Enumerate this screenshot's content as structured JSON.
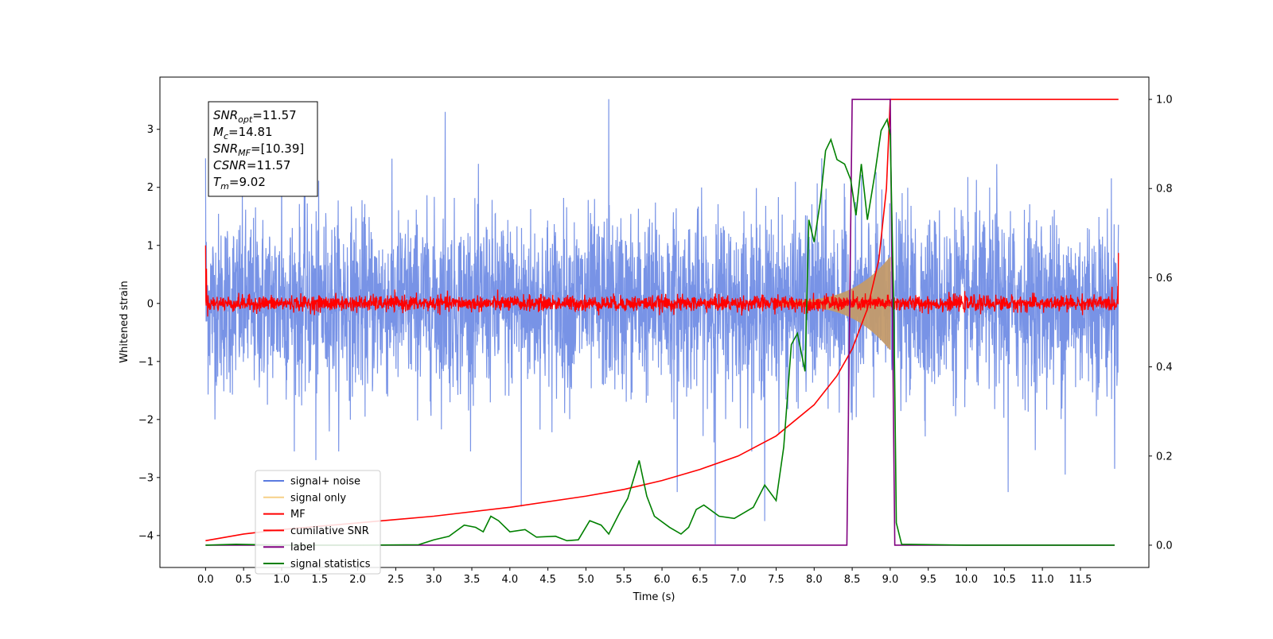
{
  "chart_data": {
    "type": "line",
    "xlabel": "Time (s)",
    "ylabel": "Whitened strain",
    "xlim": [
      -0.6,
      12.4
    ],
    "ylim": [
      -4.55,
      3.9
    ],
    "ylim_right": [
      -0.05,
      1.05
    ],
    "x_ticks": [
      0.0,
      0.5,
      1.0,
      1.5,
      2.0,
      2.5,
      3.0,
      3.5,
      4.0,
      4.5,
      5.0,
      5.5,
      6.0,
      6.5,
      7.0,
      7.5,
      8.0,
      8.5,
      9.0,
      9.5,
      10.0,
      10.5,
      11.0,
      11.5
    ],
    "x_tick_labels": [
      "0.0",
      "0.5",
      "1.0",
      "1.5",
      "2.0",
      "2.5",
      "3.0",
      "3.5",
      "4.0",
      "4.5",
      "5.0",
      "5.5",
      "6.0",
      "6.5",
      "7.0",
      "7.5",
      "8.0",
      "8.5",
      "9.0",
      "9.5",
      "10.0",
      "10.5",
      "11.0",
      "11.5"
    ],
    "y_ticks_left": [
      -4,
      -3,
      -2,
      -1,
      0,
      1,
      2,
      3
    ],
    "y_tick_labels_left": [
      "−4",
      "−3",
      "−2",
      "−1",
      "0",
      "1",
      "2",
      "3"
    ],
    "y_ticks_right": [
      0.0,
      0.2,
      0.4,
      0.6,
      0.8,
      1.0
    ],
    "y_tick_labels_right": [
      "0.0",
      "0.2",
      "0.4",
      "0.6",
      "0.8",
      "1.0"
    ],
    "grid": false,
    "legend_position": "bottom-left",
    "series": [
      {
        "name": "signal+ noise",
        "color": "#5a7be0",
        "axis": "left",
        "kind": "noise_band",
        "x_range": [
          0.0,
          12.0
        ],
        "typical_range": [
          -1.6,
          1.6
        ],
        "peaks": [
          {
            "x": 5.3,
            "y": 3.52
          },
          {
            "x": 1.0,
            "y": 2.6
          },
          {
            "x": 3.15,
            "y": 3.3
          },
          {
            "x": 6.7,
            "y": -4.15
          },
          {
            "x": 4.15,
            "y": -3.5
          },
          {
            "x": 6.2,
            "y": -3.25
          },
          {
            "x": 7.35,
            "y": -3.75
          },
          {
            "x": 10.55,
            "y": -3.25
          },
          {
            "x": 11.3,
            "y": -2.95
          },
          {
            "x": 11.95,
            "y": -2.85
          },
          {
            "x": 1.45,
            "y": -2.7
          },
          {
            "x": 1.3,
            "y": 2.5
          },
          {
            "x": 10.4,
            "y": 2.4
          },
          {
            "x": 8.1,
            "y": 2.5
          },
          {
            "x": 0.0,
            "y": 2.5
          }
        ]
      },
      {
        "name": "signal only",
        "color": "#f5c469",
        "axis": "left",
        "kind": "chirp",
        "x_range": [
          7.5,
          9.0
        ],
        "amplitude_end": 0.75
      },
      {
        "name": "MF",
        "color": "#ff0000",
        "axis": "left",
        "kind": "noise_band",
        "x_range": [
          0.0,
          12.0
        ],
        "typical_range": [
          -0.15,
          0.15
        ],
        "edge_values": [
          1.0,
          0.87
        ]
      },
      {
        "name": "cumilative SNR",
        "color": "#ff0000",
        "axis": "right",
        "points": [
          [
            0.0,
            0.01
          ],
          [
            0.5,
            0.025
          ],
          [
            1.0,
            0.035
          ],
          [
            2.0,
            0.05
          ],
          [
            3.0,
            0.065
          ],
          [
            4.0,
            0.085
          ],
          [
            5.0,
            0.11
          ],
          [
            5.5,
            0.125
          ],
          [
            6.0,
            0.145
          ],
          [
            6.5,
            0.17
          ],
          [
            7.0,
            0.2
          ],
          [
            7.5,
            0.245
          ],
          [
            8.0,
            0.315
          ],
          [
            8.3,
            0.38
          ],
          [
            8.5,
            0.44
          ],
          [
            8.7,
            0.53
          ],
          [
            8.85,
            0.64
          ],
          [
            8.95,
            0.8
          ],
          [
            9.0,
            1.0
          ],
          [
            12.0,
            1.0
          ]
        ]
      },
      {
        "name": "label",
        "color": "#800080",
        "axis": "right",
        "points": [
          [
            0.0,
            0.0
          ],
          [
            8.43,
            0.0
          ],
          [
            8.5,
            1.0
          ],
          [
            9.0,
            1.0
          ],
          [
            9.06,
            0.0
          ],
          [
            11.95,
            0.0
          ]
        ]
      },
      {
        "name": "signal statistics",
        "color": "#008000",
        "axis": "right",
        "points": [
          [
            0.0,
            0.0
          ],
          [
            0.4,
            0.002
          ],
          [
            1.0,
            0.0
          ],
          [
            2.0,
            0.0
          ],
          [
            2.8,
            0.001
          ],
          [
            3.0,
            0.012
          ],
          [
            3.2,
            0.02
          ],
          [
            3.4,
            0.045
          ],
          [
            3.55,
            0.04
          ],
          [
            3.65,
            0.03
          ],
          [
            3.75,
            0.065
          ],
          [
            3.85,
            0.055
          ],
          [
            4.0,
            0.03
          ],
          [
            4.2,
            0.035
          ],
          [
            4.35,
            0.018
          ],
          [
            4.6,
            0.02
          ],
          [
            4.75,
            0.01
          ],
          [
            4.9,
            0.012
          ],
          [
            5.05,
            0.055
          ],
          [
            5.2,
            0.045
          ],
          [
            5.3,
            0.025
          ],
          [
            5.45,
            0.075
          ],
          [
            5.55,
            0.105
          ],
          [
            5.7,
            0.19
          ],
          [
            5.8,
            0.11
          ],
          [
            5.9,
            0.065
          ],
          [
            6.1,
            0.04
          ],
          [
            6.25,
            0.025
          ],
          [
            6.35,
            0.04
          ],
          [
            6.45,
            0.08
          ],
          [
            6.55,
            0.09
          ],
          [
            6.75,
            0.065
          ],
          [
            6.95,
            0.06
          ],
          [
            7.2,
            0.085
          ],
          [
            7.35,
            0.135
          ],
          [
            7.5,
            0.1
          ],
          [
            7.6,
            0.22
          ],
          [
            7.7,
            0.45
          ],
          [
            7.78,
            0.475
          ],
          [
            7.88,
            0.39
          ],
          [
            7.93,
            0.73
          ],
          [
            8.0,
            0.68
          ],
          [
            8.08,
            0.77
          ],
          [
            8.15,
            0.885
          ],
          [
            8.22,
            0.91
          ],
          [
            8.3,
            0.865
          ],
          [
            8.4,
            0.855
          ],
          [
            8.48,
            0.82
          ],
          [
            8.55,
            0.74
          ],
          [
            8.62,
            0.855
          ],
          [
            8.7,
            0.73
          ],
          [
            8.8,
            0.835
          ],
          [
            8.88,
            0.93
          ],
          [
            8.96,
            0.955
          ],
          [
            9.0,
            0.92
          ],
          [
            9.05,
            0.5
          ],
          [
            9.08,
            0.05
          ],
          [
            9.15,
            0.002
          ],
          [
            10.0,
            0.0
          ],
          [
            11.95,
            0.0
          ]
        ]
      }
    ],
    "annotation_lines": [
      {
        "var": "SNR",
        "sub": "opt",
        "rest": "=11.57"
      },
      {
        "var": "M",
        "sub": "c",
        "rest": "=14.81"
      },
      {
        "var": "SNR",
        "sub": "MF",
        "rest": "=[10.39]"
      },
      {
        "var": "CSNR",
        "sub": "",
        "rest": "=11.57"
      },
      {
        "var": "T",
        "sub": "m",
        "rest": "=9.02"
      }
    ]
  }
}
